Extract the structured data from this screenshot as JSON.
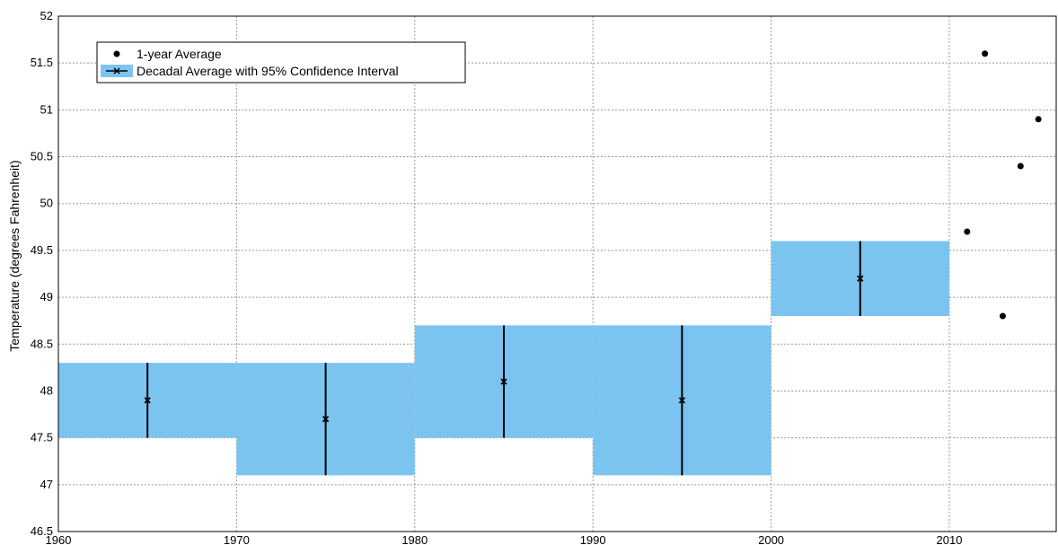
{
  "chart_data": {
    "type": "bar",
    "title": "",
    "xlabel": "",
    "ylabel": "Temperature (degrees Fahrenheit)",
    "xlim": [
      1960,
      2016
    ],
    "ylim": [
      46.5,
      52
    ],
    "x_ticks": [
      "1960",
      "1970",
      "1980",
      "1990",
      "2000",
      "2010"
    ],
    "y_ticks": [
      "46.5",
      "47",
      "47.5",
      "48",
      "48.5",
      "49",
      "49.5",
      "50",
      "50.5",
      "51",
      "51.5",
      "52"
    ],
    "grid": true,
    "legend_position": "top-left",
    "legend": [
      {
        "label": "1-year Average",
        "marker": "dot"
      },
      {
        "label": "Decadal Average with 95% Confidence Interval",
        "marker": "errorbar-box"
      }
    ],
    "series": [
      {
        "name": "Decadal Average with 95% Confidence Interval",
        "kind": "interval",
        "color": "#7cc4f0",
        "categories": [
          "1960",
          "1970",
          "1980",
          "1990",
          "2000"
        ],
        "x_start": [
          1960,
          1970,
          1980,
          1990,
          2000
        ],
        "x_end": [
          1970,
          1980,
          1990,
          2000,
          2010
        ],
        "x_center": [
          1965,
          1975,
          1985,
          1995,
          2005
        ],
        "mean": [
          47.9,
          47.7,
          48.1,
          47.9,
          49.2
        ],
        "lower": [
          47.5,
          47.1,
          47.5,
          47.1,
          48.8
        ],
        "upper": [
          48.3,
          48.3,
          48.7,
          48.7,
          49.6
        ]
      },
      {
        "name": "1-year Average",
        "kind": "scatter",
        "color": "#000000",
        "x": [
          2011,
          2012,
          2013,
          2014,
          2015
        ],
        "y": [
          49.7,
          51.6,
          48.8,
          50.4,
          50.9
        ]
      }
    ]
  }
}
